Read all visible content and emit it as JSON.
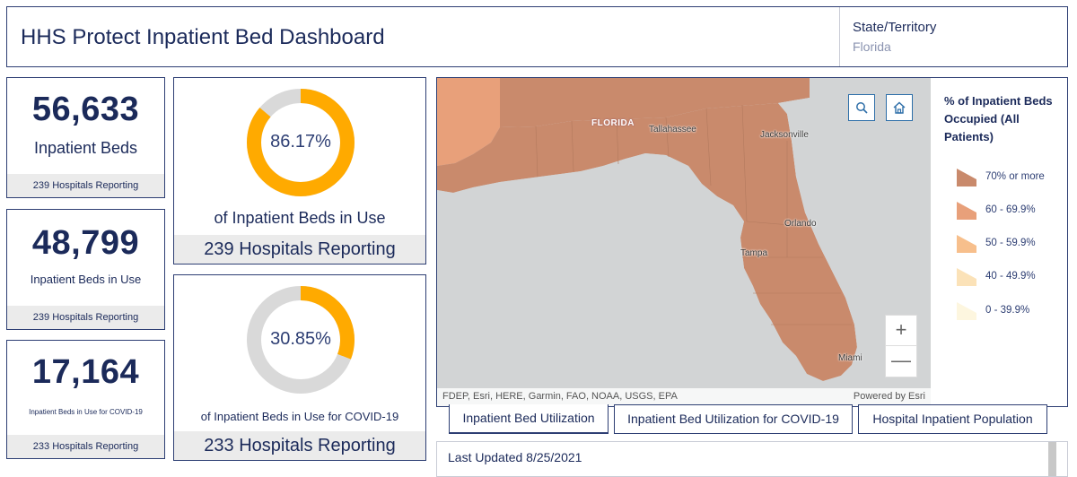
{
  "header": {
    "title": "HHS Protect Inpatient Bed Dashboard",
    "state_label": "State/Territory",
    "state_value": "Florida"
  },
  "stats": [
    {
      "value": "56,633",
      "label": "Inpatient Beds",
      "footer": "239 Hospitals Reporting"
    },
    {
      "value": "48,799",
      "label": "Inpatient Beds in Use",
      "footer": "239 Hospitals Reporting"
    },
    {
      "value": "17,164",
      "label": "Inpatient Beds in Use for COVID-19",
      "footer": "233 Hospitals Reporting"
    }
  ],
  "donuts": [
    {
      "percent_text": "86.17%",
      "percent": 86.17,
      "label": "of Inpatient Beds in Use",
      "footer": "239 Hospitals Reporting"
    },
    {
      "percent_text": "30.85%",
      "percent": 30.85,
      "label": "of Inpatient Beds in Use for COVID-19",
      "footer": "233 Hospitals Reporting"
    }
  ],
  "colors": {
    "donut_fill": "#ffaa00",
    "donut_track": "#d9d9d9",
    "primary": "#1b2a5a"
  },
  "map": {
    "state_label": "FLORIDA",
    "cities": [
      "Tallahassee",
      "Jacksonville",
      "Orlando",
      "Tampa",
      "Miami"
    ],
    "attribution": "FDEP, Esri, HERE, Garmin, FAO, NOAA, USGS, EPA",
    "powered_by": "Powered by Esri",
    "buttons": {
      "search": "search-icon",
      "home": "home-icon",
      "zoom_in": "+",
      "zoom_out": "—"
    }
  },
  "legend": {
    "title": "% of Inpatient Beds Occupied (All Patients)",
    "items": [
      {
        "label": "70% or more",
        "color": "#c98a6c"
      },
      {
        "label": "60 - 69.9%",
        "color": "#e8a07a"
      },
      {
        "label": "50 - 59.9%",
        "color": "#f7bf8c"
      },
      {
        "label": "40 - 49.9%",
        "color": "#fbe2b8"
      },
      {
        "label": "0 - 39.9%",
        "color": "#fdf6df"
      }
    ]
  },
  "tabs": [
    {
      "label": "Inpatient Bed Utilization",
      "active": true
    },
    {
      "label": "Inpatient Bed Utilization for COVID-19",
      "active": false
    },
    {
      "label": "Hospital Inpatient Population",
      "active": false
    }
  ],
  "last_updated": "Last Updated 8/25/2021"
}
